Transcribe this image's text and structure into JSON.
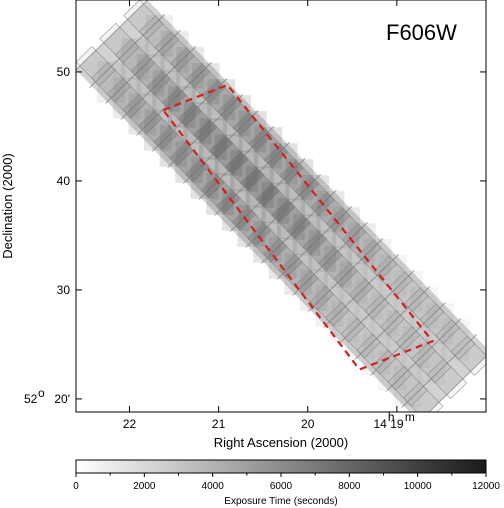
{
  "chart_data": {
    "type": "heatmap",
    "title": "",
    "filter_label": "F606W",
    "xlabel": "Right Ascension (2000)",
    "ylabel": "Declination (2000)",
    "x_ticks": [
      {
        "value": 22,
        "label": "22"
      },
      {
        "value": 21,
        "label": "21"
      },
      {
        "value": 20,
        "label": "20"
      },
      {
        "value": 19,
        "label": "19"
      }
    ],
    "x_tick_hours_label": "14",
    "x_tick_hours_sup": "h",
    "x_tick_minutes_sup": "m",
    "xlim": [
      22.6,
      18.0
    ],
    "y_ticks": [
      {
        "value": 50,
        "label": "50"
      },
      {
        "value": 40,
        "label": "40"
      },
      {
        "value": 30,
        "label": "30"
      },
      {
        "value": 20,
        "label": "20'"
      }
    ],
    "y_tick_degrees_label": "52",
    "y_tick_degrees_sup": "o",
    "ylim": [
      18.8,
      56.6
    ],
    "colorbar": {
      "title": "Exposure Time (seconds)",
      "min": 0,
      "max": 12000,
      "ticks": [
        "0",
        "2000",
        "4000",
        "6000",
        "8000",
        "10000",
        "12000"
      ],
      "tick_values": [
        0,
        2000,
        4000,
        6000,
        8000,
        10000,
        12000
      ],
      "color_low": "#ffffff",
      "color_high": "#1a1a1a"
    },
    "strip": {
      "x_start": 22.2,
      "y_start": 53.4,
      "x_end": 18.35,
      "y_end": 21.1,
      "half_width": 0.56,
      "tile_rows": 22,
      "tile_cols": 3
    },
    "outline": {
      "color": "#d42020",
      "points": [
        {
          "x": 21.62,
          "y": 46.5
        },
        {
          "x": 20.9,
          "y": 48.8
        },
        {
          "x": 18.6,
          "y": 25.3
        },
        {
          "x": 19.42,
          "y": 22.7
        }
      ]
    }
  }
}
